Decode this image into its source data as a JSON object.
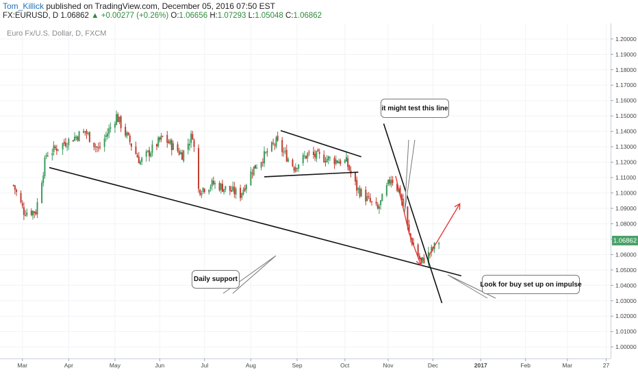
{
  "header": {
    "author": "Tom_Killick",
    "published": "published on TradingView.com, December 05, 2016 07:50 EST",
    "symbol": "FX:EURUSD, D",
    "last": "1.06862",
    "change": "+0.00277 (+0.26%)",
    "open_label": "O:",
    "open": "1.06656",
    "high_label": "H:",
    "high": "1.07293",
    "low_label": "L:",
    "low": "1.05048",
    "close_label": "C:",
    "close": "1.06862"
  },
  "watermark": "Euro Fx/U.S. Dollar, D, FXCM",
  "price_tag": "1.06862",
  "annotations": {
    "test_line": "it might test this line",
    "daily_support": "Daily support",
    "buy_setup": "Look for buy set up on impulse"
  },
  "colors": {
    "up": "#3a9a5c",
    "down": "#c0392b",
    "line": "#111111",
    "arrow": "#e53935",
    "grid": "#f0f3f6"
  },
  "chart_data": {
    "type": "candlestick",
    "ylim": [
      0.9925,
      1.2075
    ],
    "yticks": [
      "1.20000",
      "1.19000",
      "1.18000",
      "1.17000",
      "1.16000",
      "1.15000",
      "1.14000",
      "1.13000",
      "1.12000",
      "1.11000",
      "1.10000",
      "1.09000",
      "1.08000",
      "1.07000",
      "1.06000",
      "1.05000",
      "1.04000",
      "1.03000",
      "1.02000",
      "1.01000",
      "1.00000"
    ],
    "xticks": [
      "Mar",
      "Apr",
      "May",
      "Jun",
      "Jul",
      "Aug",
      "Sep",
      "Oct",
      "Nov",
      "Dec",
      "2017",
      "Feb",
      "Mar",
      "27"
    ],
    "anchors": [
      {
        "d": "2016-02-24",
        "v": 1.105
      },
      {
        "d": "2016-03-02",
        "v": 1.088
      },
      {
        "d": "2016-03-10",
        "v": 1.088
      },
      {
        "d": "2016-03-17",
        "v": 1.125
      },
      {
        "d": "2016-03-30",
        "v": 1.133
      },
      {
        "d": "2016-04-12",
        "v": 1.14
      },
      {
        "d": "2016-04-21",
        "v": 1.128
      },
      {
        "d": "2016-05-03",
        "v": 1.15
      },
      {
        "d": "2016-05-19",
        "v": 1.12
      },
      {
        "d": "2016-06-03",
        "v": 1.136
      },
      {
        "d": "2016-06-16",
        "v": 1.125
      },
      {
        "d": "2016-06-23",
        "v": 1.138
      },
      {
        "d": "2016-06-27",
        "v": 1.102
      },
      {
        "d": "2016-07-07",
        "v": 1.106
      },
      {
        "d": "2016-07-25",
        "v": 1.099
      },
      {
        "d": "2016-08-02",
        "v": 1.115
      },
      {
        "d": "2016-08-18",
        "v": 1.133
      },
      {
        "d": "2016-08-30",
        "v": 1.117
      },
      {
        "d": "2016-09-08",
        "v": 1.125
      },
      {
        "d": "2016-09-23",
        "v": 1.122
      },
      {
        "d": "2016-10-04",
        "v": 1.12
      },
      {
        "d": "2016-10-11",
        "v": 1.103
      },
      {
        "d": "2016-10-25",
        "v": 1.089
      },
      {
        "d": "2016-11-03",
        "v": 1.11
      },
      {
        "d": "2016-11-09",
        "v": 1.1
      },
      {
        "d": "2016-11-15",
        "v": 1.073
      },
      {
        "d": "2016-11-23",
        "v": 1.055
      },
      {
        "d": "2016-11-28",
        "v": 1.06
      },
      {
        "d": "2016-12-05",
        "v": 1.0686
      }
    ],
    "drawings": [
      {
        "name": "daily-support",
        "from": [
          "2016-03-19",
          1.1165
        ],
        "to": [
          "2016-12-20",
          1.0462
        ]
      },
      {
        "name": "triangle-upper",
        "from": [
          "2016-08-21",
          1.1405
        ],
        "to": [
          "2016-10-14",
          1.1235
        ]
      },
      {
        "name": "triangle-lower",
        "from": [
          "2016-08-10",
          1.1105
        ],
        "to": [
          "2016-10-12",
          1.1135
        ]
      },
      {
        "name": "downtrend-line",
        "from": [
          "2016-10-29",
          1.145
        ],
        "to": [
          "2016-12-07",
          1.0285
        ]
      }
    ],
    "arrows": [
      {
        "name": "drop-arrow",
        "points": [
          [
            "2016-11-06",
            1.111
          ],
          [
            "2016-11-15",
            1.074
          ],
          [
            "2016-11-23",
            1.053
          ]
        ]
      },
      {
        "name": "impulse-arrow",
        "points": [
          [
            "2016-11-28",
            1.059
          ],
          [
            "2016-12-19",
            1.093
          ]
        ]
      }
    ]
  }
}
